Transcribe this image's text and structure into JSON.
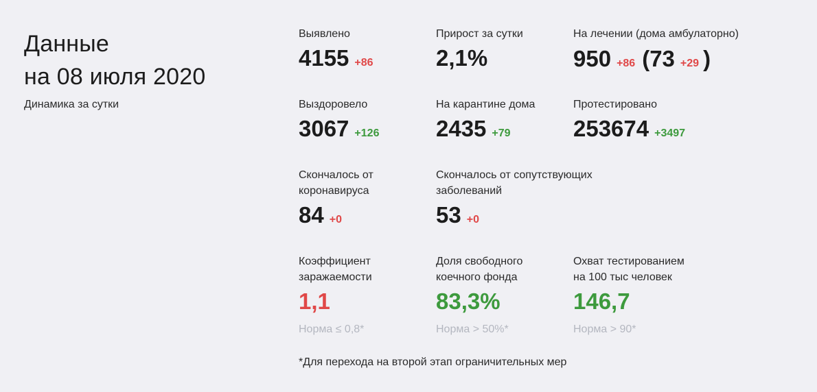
{
  "header": {
    "title_line1": "Данные",
    "title_line2": "на 08 июля 2020",
    "subtitle": "Динамика за сутки"
  },
  "stats": {
    "detected": {
      "label": "Выявлено",
      "value": "4155",
      "delta": "+86"
    },
    "growth": {
      "label": "Прирост за сутки",
      "value": "2,1%"
    },
    "treatment": {
      "label": "На лечении (дома амбулаторно)",
      "value": "950",
      "delta": "+86",
      "home_value": "73",
      "home_delta": "+29",
      "paren_open": "(",
      "paren_close": ")"
    },
    "recovered": {
      "label": "Выздоровело",
      "value": "3067",
      "delta": "+126"
    },
    "quarantine": {
      "label": "На карантине дома",
      "value": "2435",
      "delta": "+79"
    },
    "tested": {
      "label": "Протестировано",
      "value": "253674",
      "delta": "+3497"
    },
    "died_covid": {
      "label_line1": "Скончалось от",
      "label_line2": "коронавируса",
      "value": "84",
      "delta": "+0"
    },
    "died_other": {
      "label_line1": "Скончалось от сопутствующих",
      "label_line2": "заболеваний",
      "value": "53",
      "delta": "+0"
    },
    "infection_rate": {
      "label_line1": "Коэффициент",
      "label_line2": "заражаемости",
      "value": "1,1",
      "norm": "Норма ≤ 0,8*"
    },
    "free_beds": {
      "label_line1": "Доля свободного",
      "label_line2": "коечного фонда",
      "value": "83,3%",
      "norm": "Норма > 50%*"
    },
    "test_coverage": {
      "label_line1": "Охват тестированием",
      "label_line2": "на 100 тыс человек",
      "value": "146,7",
      "norm": "Норма > 90*"
    }
  },
  "footnote": "*Для перехода на второй этап ограничительных мер",
  "colors": {
    "background": "#f0f0f4",
    "text": "#1c1c1c",
    "delta_up_bad": "#e04848",
    "delta_up_good": "#3d9a3d",
    "norm_text": "#b4b7c0"
  }
}
